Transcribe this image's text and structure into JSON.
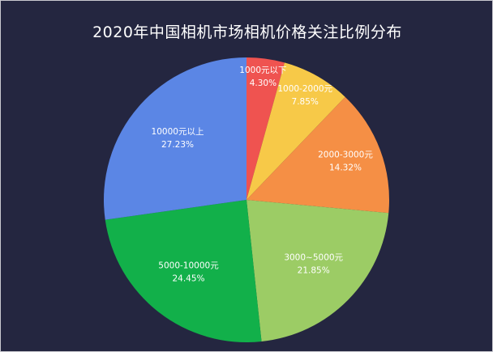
{
  "chart_data": {
    "type": "pie",
    "title": "2020年中国相机市场相机价格关注比例分布",
    "slices": [
      {
        "label": "1000元以下",
        "value": 4.3,
        "value_text": "4.30%",
        "color": "#ef5350"
      },
      {
        "label": "1000-2000元",
        "value": 7.85,
        "value_text": "7.85%",
        "color": "#f7c948"
      },
      {
        "label": "2000-3000元",
        "value": 14.32,
        "value_text": "14.32%",
        "color": "#f58f45"
      },
      {
        "label": "3000~5000元",
        "value": 21.85,
        "value_text": "21.85%",
        "color": "#9ccc65"
      },
      {
        "label": "5000-10000元",
        "value": 24.45,
        "value_text": "24.45%",
        "color": "#12b04a"
      },
      {
        "label": "10000元以上",
        "value": 27.23,
        "value_text": "27.23%",
        "color": "#5b86e5"
      }
    ],
    "start_direction": "top",
    "direction": "clockwise",
    "background": "#242640"
  }
}
